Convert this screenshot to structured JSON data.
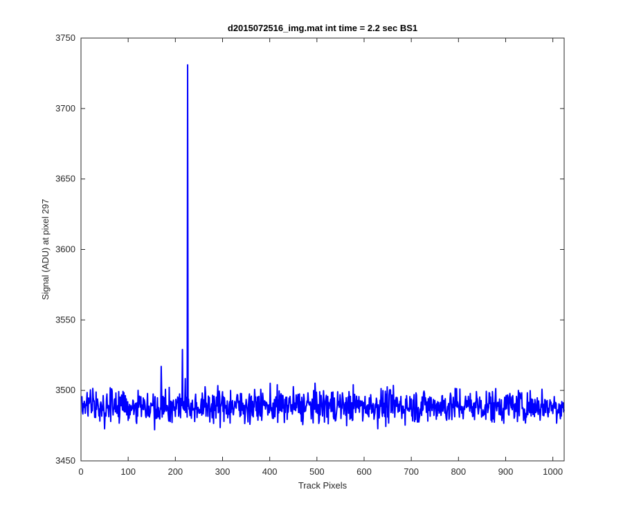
{
  "chart_data": {
    "type": "line",
    "title": "d2015072516_img.mat int time = 2.2 sec   BS1",
    "xlabel": "Track Pixels",
    "ylabel": "Signal (ADU) at pixel 297",
    "xlim": [
      0,
      1024
    ],
    "ylim": [
      3450,
      3750
    ],
    "xticks": [
      "0",
      "100",
      "200",
      "300",
      "400",
      "500",
      "600",
      "700",
      "800",
      "900",
      "1000"
    ],
    "yticks": [
      "3450",
      "3500",
      "3550",
      "3600",
      "3650",
      "3700",
      "3750"
    ],
    "grid": false,
    "series": [
      {
        "color": "#0000ff",
        "noise": {
          "x_start": 1,
          "x_end": 1024,
          "mean": 3489,
          "min": 3460,
          "max": 3517
        },
        "features": [
          {
            "x": 170,
            "y": 3517
          },
          {
            "x": 215,
            "y": 3529
          },
          {
            "x": 226,
            "y": 3731
          }
        ]
      }
    ]
  }
}
